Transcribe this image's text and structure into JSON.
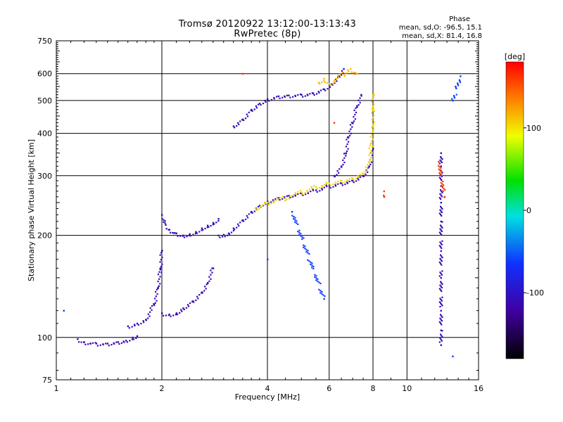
{
  "chart_data": {
    "type": "scatter",
    "title": "Tromsø 20120922 13:12:00-13:13:43",
    "subtitle": "RwPretec (8p)",
    "xlabel": "Frequency [MHz]",
    "ylabel": "Stationary phase Virtual Height [km]",
    "x_scale": "log2",
    "y_scale": "log",
    "xlim": [
      1,
      16
    ],
    "ylim": [
      75,
      750
    ],
    "x_ticks": [
      1,
      2,
      4,
      6,
      8,
      10,
      16
    ],
    "y_ticks": [
      75,
      100,
      200,
      300,
      400,
      500,
      600,
      750
    ],
    "grid": true,
    "phase_stats": {
      "header": "Phase",
      "line_o": "mean, sd,O:  -96.5, 15.1",
      "line_x": "mean, sd,X:  81.4, 16.8"
    },
    "colorbar": {
      "label": "[deg]",
      "range": [
        -180,
        180
      ],
      "ticks": [
        100,
        0,
        -100
      ]
    },
    "series": [
      {
        "points": [
          [
            1.15,
            99
          ],
          [
            1.2,
            97
          ],
          [
            1.3,
            96
          ],
          [
            1.4,
            96
          ],
          [
            1.5,
            97
          ],
          [
            1.58,
            98
          ],
          [
            1.65,
            100
          ],
          [
            1.7,
            101
          ]
        ],
        "phase": -110
      },
      {
        "points": [
          [
            1.6,
            108
          ],
          [
            1.7,
            110
          ],
          [
            1.8,
            113
          ],
          [
            1.9,
            125
          ],
          [
            1.95,
            140
          ],
          [
            1.98,
            160
          ],
          [
            2.0,
            180
          ]
        ],
        "phase": -110
      },
      {
        "points": [
          [
            2.0,
            118
          ],
          [
            2.1,
            117
          ],
          [
            2.2,
            118
          ],
          [
            2.3,
            122
          ],
          [
            2.45,
            128
          ],
          [
            2.6,
            136
          ],
          [
            2.7,
            145
          ],
          [
            2.8,
            160
          ]
        ],
        "phase": -115
      },
      {
        "points": [
          [
            2.0,
            230
          ],
          [
            2.05,
            215
          ],
          [
            2.1,
            208
          ],
          [
            2.2,
            203
          ],
          [
            2.3,
            200
          ],
          [
            2.4,
            202
          ],
          [
            2.5,
            205
          ],
          [
            2.6,
            210
          ],
          [
            2.7,
            214
          ],
          [
            2.8,
            218
          ],
          [
            2.9,
            224
          ]
        ],
        "phase": -110
      },
      {
        "points": [
          [
            2.9,
            200
          ],
          [
            3.0,
            201
          ],
          [
            3.1,
            203
          ],
          [
            3.2,
            210
          ],
          [
            3.4,
            222
          ],
          [
            3.6,
            235
          ],
          [
            3.8,
            245
          ],
          [
            4.0,
            252
          ],
          [
            4.3,
            258
          ],
          [
            4.6,
            262
          ],
          [
            5.0,
            266
          ],
          [
            5.5,
            272
          ],
          [
            6.0,
            280
          ],
          [
            6.5,
            285
          ],
          [
            7.0,
            290
          ],
          [
            7.5,
            300
          ],
          [
            7.8,
            320
          ],
          [
            8.0,
            360
          ]
        ],
        "phase": -105
      },
      {
        "points": [
          [
            3.7,
            240
          ],
          [
            4.0,
            250
          ],
          [
            4.5,
            258
          ],
          [
            5.0,
            268
          ],
          [
            5.5,
            278
          ],
          [
            6.0,
            285
          ],
          [
            6.5,
            290
          ],
          [
            7.0,
            295
          ],
          [
            7.5,
            305
          ],
          [
            7.8,
            330
          ],
          [
            8.0,
            420
          ],
          [
            8.0,
            520
          ]
        ],
        "phase": 105
      },
      {
        "points": [
          [
            6.2,
            300
          ],
          [
            6.5,
            320
          ],
          [
            6.7,
            350
          ],
          [
            6.8,
            390
          ],
          [
            7.0,
            430
          ],
          [
            7.2,
            480
          ],
          [
            7.4,
            520
          ]
        ],
        "phase": -110
      },
      {
        "points": [
          [
            3.2,
            420
          ],
          [
            3.4,
            440
          ],
          [
            3.6,
            470
          ],
          [
            3.8,
            490
          ],
          [
            4.0,
            505
          ],
          [
            4.3,
            515
          ],
          [
            4.6,
            518
          ],
          [
            5.0,
            520
          ],
          [
            5.4,
            525
          ],
          [
            5.8,
            540
          ],
          [
            6.1,
            560
          ],
          [
            6.4,
            590
          ],
          [
            6.6,
            620
          ]
        ],
        "phase": -110
      },
      {
        "points": [
          [
            5.6,
            565
          ],
          [
            5.8,
            580
          ],
          [
            6.0,
            560
          ],
          [
            6.9,
            620
          ],
          [
            7.2,
            600
          ]
        ],
        "phase": 115
      },
      {
        "points": [
          [
            12.5,
            350
          ],
          [
            12.5,
            320
          ],
          [
            12.5,
            280
          ],
          [
            12.5,
            250
          ],
          [
            12.5,
            220
          ],
          [
            12.5,
            180
          ],
          [
            12.5,
            150
          ],
          [
            12.5,
            120
          ],
          [
            12.5,
            105
          ],
          [
            12.5,
            95
          ]
        ],
        "phase": -110
      },
      {
        "points": [
          [
            13.5,
            88
          ],
          [
            14.2,
            590
          ],
          [
            13.5,
            500
          ],
          [
            1.05,
            120
          ],
          [
            4.7,
            235
          ],
          [
            5.8,
            130
          ],
          [
            4.0,
            170
          ]
        ],
        "phase": -60
      },
      {
        "points": [
          [
            8.6,
            270
          ],
          [
            8.6,
            260
          ],
          [
            12.3,
            330
          ],
          [
            12.8,
            260
          ],
          [
            6.2,
            430
          ],
          [
            3.4,
            600
          ],
          [
            7.1,
            600
          ]
        ],
        "phase": 160
      }
    ]
  }
}
